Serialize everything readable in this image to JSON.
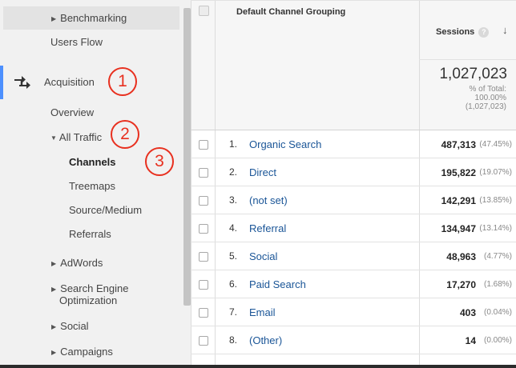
{
  "sidebar": {
    "benchmarking": "Benchmarking",
    "users_flow": "Users Flow",
    "acquisition": "Acquisition",
    "overview": "Overview",
    "all_traffic": "All Traffic",
    "channels": "Channels",
    "treemaps": "Treemaps",
    "source_medium": "Source/Medium",
    "referrals": "Referrals",
    "adwords": "AdWords",
    "seo_line1": "Search Engine",
    "seo_line2": "Optimization",
    "social": "Social",
    "campaigns": "Campaigns",
    "accent_color": "#4d90fe"
  },
  "annotations": {
    "one": "1",
    "two": "2",
    "three": "3",
    "color": "#e8301f"
  },
  "table": {
    "dimension_header": "Default Channel Grouping",
    "metric_header": "Sessions",
    "help_glyph": "?",
    "sort_glyph": "↓",
    "total_value": "1,027,023",
    "total_pct_line1": "% of Total:",
    "total_pct_line2": "100.00%",
    "total_pct_line3": "(1,027,023)",
    "rows": [
      {
        "num": "1.",
        "name": "Organic Search",
        "sessions": "487,313",
        "pct": "(47.45%)"
      },
      {
        "num": "2.",
        "name": "Direct",
        "sessions": "195,822",
        "pct": "(19.07%)"
      },
      {
        "num": "3.",
        "name": "(not set)",
        "sessions": "142,291",
        "pct": "(13.85%)"
      },
      {
        "num": "4.",
        "name": "Referral",
        "sessions": "134,947",
        "pct": "(13.14%)"
      },
      {
        "num": "5.",
        "name": "Social",
        "sessions": "48,963",
        "pct": "(4.77%)"
      },
      {
        "num": "6.",
        "name": "Paid Search",
        "sessions": "17,270",
        "pct": "(1.68%)"
      },
      {
        "num": "7.",
        "name": "Email",
        "sessions": "403",
        "pct": "(0.04%)"
      },
      {
        "num": "8.",
        "name": "(Other)",
        "sessions": "14",
        "pct": "(0.00%)"
      }
    ]
  }
}
